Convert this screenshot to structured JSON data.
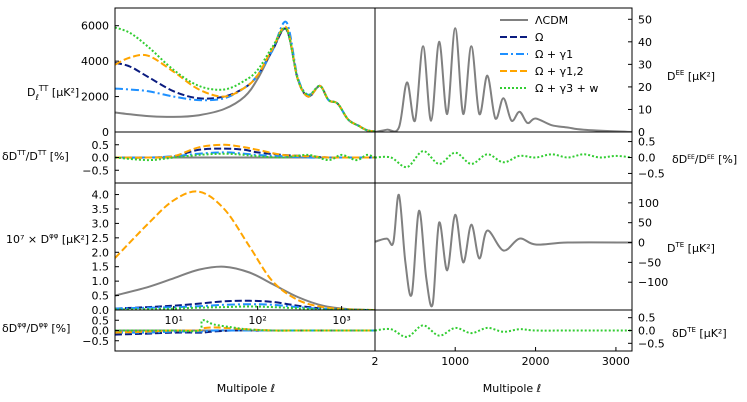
{
  "legend": [
    {
      "label": "ΛCDM",
      "color": "#808080",
      "dash": "solid"
    },
    {
      "label": "Ω",
      "color": "#0b1c80",
      "dash": "dashed"
    },
    {
      "label": "Ω + γ1",
      "color": "#1e90ff",
      "dash": "dashdot"
    },
    {
      "label": "Ω + γ1,2",
      "color": "#ffa500",
      "dash": "dashed"
    },
    {
      "label": "Ω + γ3 + w",
      "color": "#32cd32",
      "dash": "dotted"
    }
  ],
  "xlabel": "Multipole ℓ",
  "chart_data": [
    {
      "id": "tt",
      "type": "line",
      "ylabel": "D_ℓ^TT [μK²]",
      "xscale": "log",
      "xlim": [
        2,
        2500
      ],
      "ylim": [
        0,
        7000
      ],
      "yticks": [
        0,
        2000,
        4000,
        6000
      ],
      "xticks": [],
      "x": [
        2,
        3,
        5,
        10,
        20,
        40,
        70,
        100,
        150,
        220,
        300,
        400,
        550,
        700,
        900,
        1200,
        1600,
        2000,
        2500
      ],
      "series": [
        {
          "name": "ΛCDM",
          "values": [
            1100,
            1000,
            900,
            850,
            950,
            1300,
            2000,
            3000,
            4600,
            5800,
            3000,
            2000,
            2600,
            1800,
            1600,
            700,
            350,
            100,
            30
          ]
        },
        {
          "name": "Ω",
          "values": [
            3900,
            3700,
            3100,
            2300,
            1900,
            2000,
            2500,
            3200,
            4600,
            5800,
            3000,
            2000,
            2600,
            1800,
            1600,
            700,
            350,
            100,
            30
          ]
        },
        {
          "name": "Ω + γ1",
          "values": [
            2450,
            2400,
            2300,
            2000,
            1800,
            1900,
            2500,
            3200,
            4600,
            6200,
            3100,
            2100,
            2600,
            1800,
            1600,
            700,
            350,
            100,
            30
          ]
        },
        {
          "name": "Ω + γ1,2",
          "values": [
            3800,
            4200,
            4300,
            3400,
            2400,
            2000,
            2500,
            3200,
            4700,
            5900,
            3000,
            2000,
            2600,
            1800,
            1600,
            700,
            350,
            100,
            30
          ]
        },
        {
          "name": "Ω + γ3 + w",
          "values": [
            5900,
            5600,
            4800,
            3500,
            2600,
            2400,
            2900,
            3500,
            4800,
            5800,
            3000,
            2100,
            2600,
            1800,
            1600,
            700,
            350,
            100,
            30
          ]
        }
      ]
    },
    {
      "id": "dtt",
      "type": "line",
      "ylabel": "δD_ℓ^TT / D_ℓ^TT [%]",
      "xscale": "log",
      "xlim": [
        2,
        2500
      ],
      "ylim": [
        -1,
        1
      ],
      "yticks": [
        -0.5,
        0,
        0.5
      ],
      "yticklabels": [
        "−0.5",
        "0.0",
        "0.5"
      ],
      "xticks": [],
      "x": [
        2,
        5,
        10,
        20,
        40,
        70,
        100,
        200,
        400,
        700,
        1000,
        1500,
        2000,
        2500
      ],
      "series": [
        {
          "name": "ΛCDM",
          "values": [
            0,
            0,
            0,
            0,
            0,
            0,
            0,
            0,
            0,
            0,
            0,
            0,
            0,
            0
          ]
        },
        {
          "name": "Ω",
          "values": [
            0,
            0,
            0.05,
            0.3,
            0.35,
            0.3,
            0.2,
            0.1,
            0.05,
            0,
            0,
            0,
            0,
            0
          ]
        },
        {
          "name": "Ω + γ1",
          "values": [
            0,
            0,
            0.05,
            0.15,
            0.2,
            0.15,
            0.1,
            0.05,
            0,
            0,
            0,
            0,
            0,
            0
          ]
        },
        {
          "name": "Ω + γ1,2",
          "values": [
            0,
            0,
            0.05,
            0.4,
            0.5,
            0.4,
            0.3,
            0.1,
            0.05,
            0,
            0,
            0,
            0,
            0
          ]
        },
        {
          "name": "Ω + γ3 + w",
          "values": [
            0,
            -0.1,
            0,
            0.1,
            0.15,
            0.1,
            0.05,
            0,
            0.1,
            -0.1,
            0.1,
            -0.1,
            0.1,
            0
          ]
        }
      ]
    },
    {
      "id": "pp",
      "type": "line",
      "ylabel": "10⁷ × D_ℓ^φφ [μK²]",
      "xscale": "log",
      "xlim": [
        2,
        2500
      ],
      "ylim": [
        0,
        4.4
      ],
      "yticks": [
        0,
        0.5,
        1,
        1.5,
        2,
        2.5,
        3,
        3.5,
        4
      ],
      "yticklabels": [
        "0.0",
        "0.5",
        "1.0",
        "1.5",
        "2.0",
        "2.5",
        "3.0",
        "3.5",
        "4.0"
      ],
      "xticks": [
        10,
        100,
        1000
      ],
      "xticklabels": [
        "10¹",
        "10²",
        "10³"
      ],
      "x": [
        2,
        5,
        10,
        20,
        40,
        80,
        150,
        300,
        600,
        1200,
        2500
      ],
      "series": [
        {
          "name": "ΛCDM",
          "values": [
            0.5,
            0.8,
            1.1,
            1.4,
            1.5,
            1.3,
            0.9,
            0.45,
            0.15,
            0.03,
            0
          ]
        },
        {
          "name": "Ω",
          "values": [
            0.05,
            0.1,
            0.15,
            0.22,
            0.3,
            0.32,
            0.28,
            0.15,
            0.05,
            0.01,
            0
          ]
        },
        {
          "name": "Ω + γ1",
          "values": [
            0.05,
            0.08,
            0.1,
            0.13,
            0.18,
            0.2,
            0.18,
            0.1,
            0.04,
            0.01,
            0
          ]
        },
        {
          "name": "Ω + γ1,2",
          "values": [
            1.8,
            3.0,
            3.8,
            4.1,
            3.5,
            2.2,
            1.0,
            0.35,
            0.1,
            0.02,
            0
          ]
        },
        {
          "name": "Ω + γ3 + w",
          "values": [
            0.02,
            0.03,
            0.05,
            0.08,
            0.1,
            0.12,
            0.1,
            0.06,
            0.02,
            0.01,
            0
          ]
        }
      ]
    },
    {
      "id": "dpp",
      "type": "line",
      "ylabel": "δD_ℓ^φφ / D_ℓ^φφ [%]",
      "xscale": "log",
      "xlim": [
        2,
        2500
      ],
      "ylim": [
        -1,
        1
      ],
      "yticks": [
        -0.5,
        0,
        0.5
      ],
      "yticklabels": [
        "−0.5",
        "0.0",
        "0.5"
      ],
      "xticks": [],
      "x": [
        2,
        5,
        10,
        20,
        22,
        30,
        50,
        80,
        150,
        300,
        700,
        1500,
        2500
      ],
      "series": [
        {
          "name": "ΛCDM",
          "values": [
            0,
            0,
            0,
            0,
            0,
            0,
            0,
            0,
            0,
            0,
            0,
            0,
            0
          ]
        },
        {
          "name": "Ω",
          "values": [
            -0.2,
            -0.15,
            -0.1,
            -0.1,
            -0.1,
            -0.05,
            0,
            0,
            0,
            0,
            0,
            0,
            0
          ]
        },
        {
          "name": "Ω + γ1",
          "values": [
            -0.1,
            -0.1,
            -0.05,
            -0.05,
            -0.05,
            0,
            0,
            0,
            0,
            0,
            0,
            0,
            0
          ]
        },
        {
          "name": "Ω + γ1,2",
          "values": [
            -0.1,
            -0.05,
            0,
            0,
            0.1,
            0.15,
            0.1,
            0.05,
            0,
            0,
            0,
            0,
            0
          ]
        },
        {
          "name": "Ω + γ3 + w",
          "values": [
            0,
            0,
            0,
            0,
            0.5,
            0.3,
            0.15,
            0.05,
            0,
            0,
            0,
            0,
            0
          ]
        }
      ]
    },
    {
      "id": "ee",
      "type": "line",
      "ylabel": "D_ℓ^EE [μK²]",
      "xscale": "linear",
      "xlim": [
        2,
        3200
      ],
      "ylim": [
        0,
        55
      ],
      "yticks": [
        0,
        10,
        20,
        30,
        40,
        50
      ],
      "xticks": [],
      "x": [
        2,
        150,
        300,
        400,
        500,
        600,
        700,
        800,
        900,
        1000,
        1100,
        1200,
        1300,
        1400,
        1500,
        1600,
        1700,
        1800,
        1900,
        2000,
        2200,
        2400,
        2600,
        3200
      ],
      "series": [
        {
          "name": "ΛCDM",
          "values": [
            0,
            1,
            2,
            22,
            5,
            38,
            5,
            40,
            8,
            46,
            8,
            38,
            8,
            25,
            6,
            15,
            5,
            9,
            4,
            6,
            3,
            2,
            1,
            0
          ]
        }
      ]
    },
    {
      "id": "dee",
      "type": "line",
      "ylabel": "δD_ℓ^EE / D_ℓ^EE [%]",
      "xscale": "linear",
      "xlim": [
        2,
        3200
      ],
      "ylim": [
        -0.8,
        0.8
      ],
      "yticks": [
        -0.5,
        0,
        0.5
      ],
      "yticklabels": [
        "−0.5",
        "0.0",
        "0.5"
      ],
      "xticks": [],
      "x": [
        2,
        200,
        400,
        600,
        800,
        1000,
        1200,
        1400,
        1600,
        1800,
        2000,
        2200,
        2400,
        2600,
        2800,
        3000,
        3200
      ],
      "series": [
        {
          "name": "Ω + γ3 + w",
          "values": [
            0,
            0,
            -0.3,
            0.2,
            -0.2,
            0.15,
            -0.2,
            0.1,
            -0.15,
            0.05,
            0,
            0.1,
            0,
            0.1,
            0,
            0.05,
            0
          ]
        }
      ]
    },
    {
      "id": "te",
      "type": "line",
      "ylabel": "D_ℓ^TE [μK²]",
      "xscale": "linear",
      "xlim": [
        2,
        3200
      ],
      "ylim": [
        -170,
        150
      ],
      "yticks": [
        -100,
        -50,
        0,
        50,
        100
      ],
      "yticklabels": [
        "−100",
        "−50",
        "0",
        "50",
        "100"
      ],
      "xticks": [],
      "x": [
        2,
        150,
        230,
        300,
        380,
        460,
        550,
        640,
        720,
        800,
        900,
        1000,
        1100,
        1200,
        1300,
        1400,
        1600,
        1800,
        2000,
        2400,
        3200
      ],
      "series": [
        {
          "name": "ΛCDM",
          "values": [
            2,
            10,
            0,
            120,
            -50,
            -130,
            80,
            -90,
            -155,
            50,
            -70,
            70,
            -50,
            45,
            -40,
            30,
            -20,
            10,
            -5,
            0,
            0
          ]
        }
      ]
    },
    {
      "id": "dte",
      "type": "line",
      "ylabel": "δD_ℓ^TE [μK²]",
      "xscale": "linear",
      "xlim": [
        2,
        3200
      ],
      "ylim": [
        -0.8,
        0.8
      ],
      "yticks": [
        -0.5,
        0,
        0.5
      ],
      "yticklabels": [
        "−0.5",
        "0.0",
        "0.5"
      ],
      "xticks": [
        2,
        1000,
        2000,
        3000
      ],
      "xticklabels": [
        "2",
        "1000",
        "2000",
        "3000"
      ],
      "x": [
        2,
        200,
        400,
        600,
        800,
        1000,
        1200,
        1400,
        1600,
        1800,
        2000,
        2400,
        2800,
        3200
      ],
      "series": [
        {
          "name": "Ω + γ3 + w",
          "values": [
            0,
            0.05,
            -0.25,
            0.2,
            -0.2,
            0.1,
            -0.1,
            0.1,
            -0.05,
            0.05,
            0,
            0,
            0,
            0
          ]
        }
      ]
    }
  ]
}
